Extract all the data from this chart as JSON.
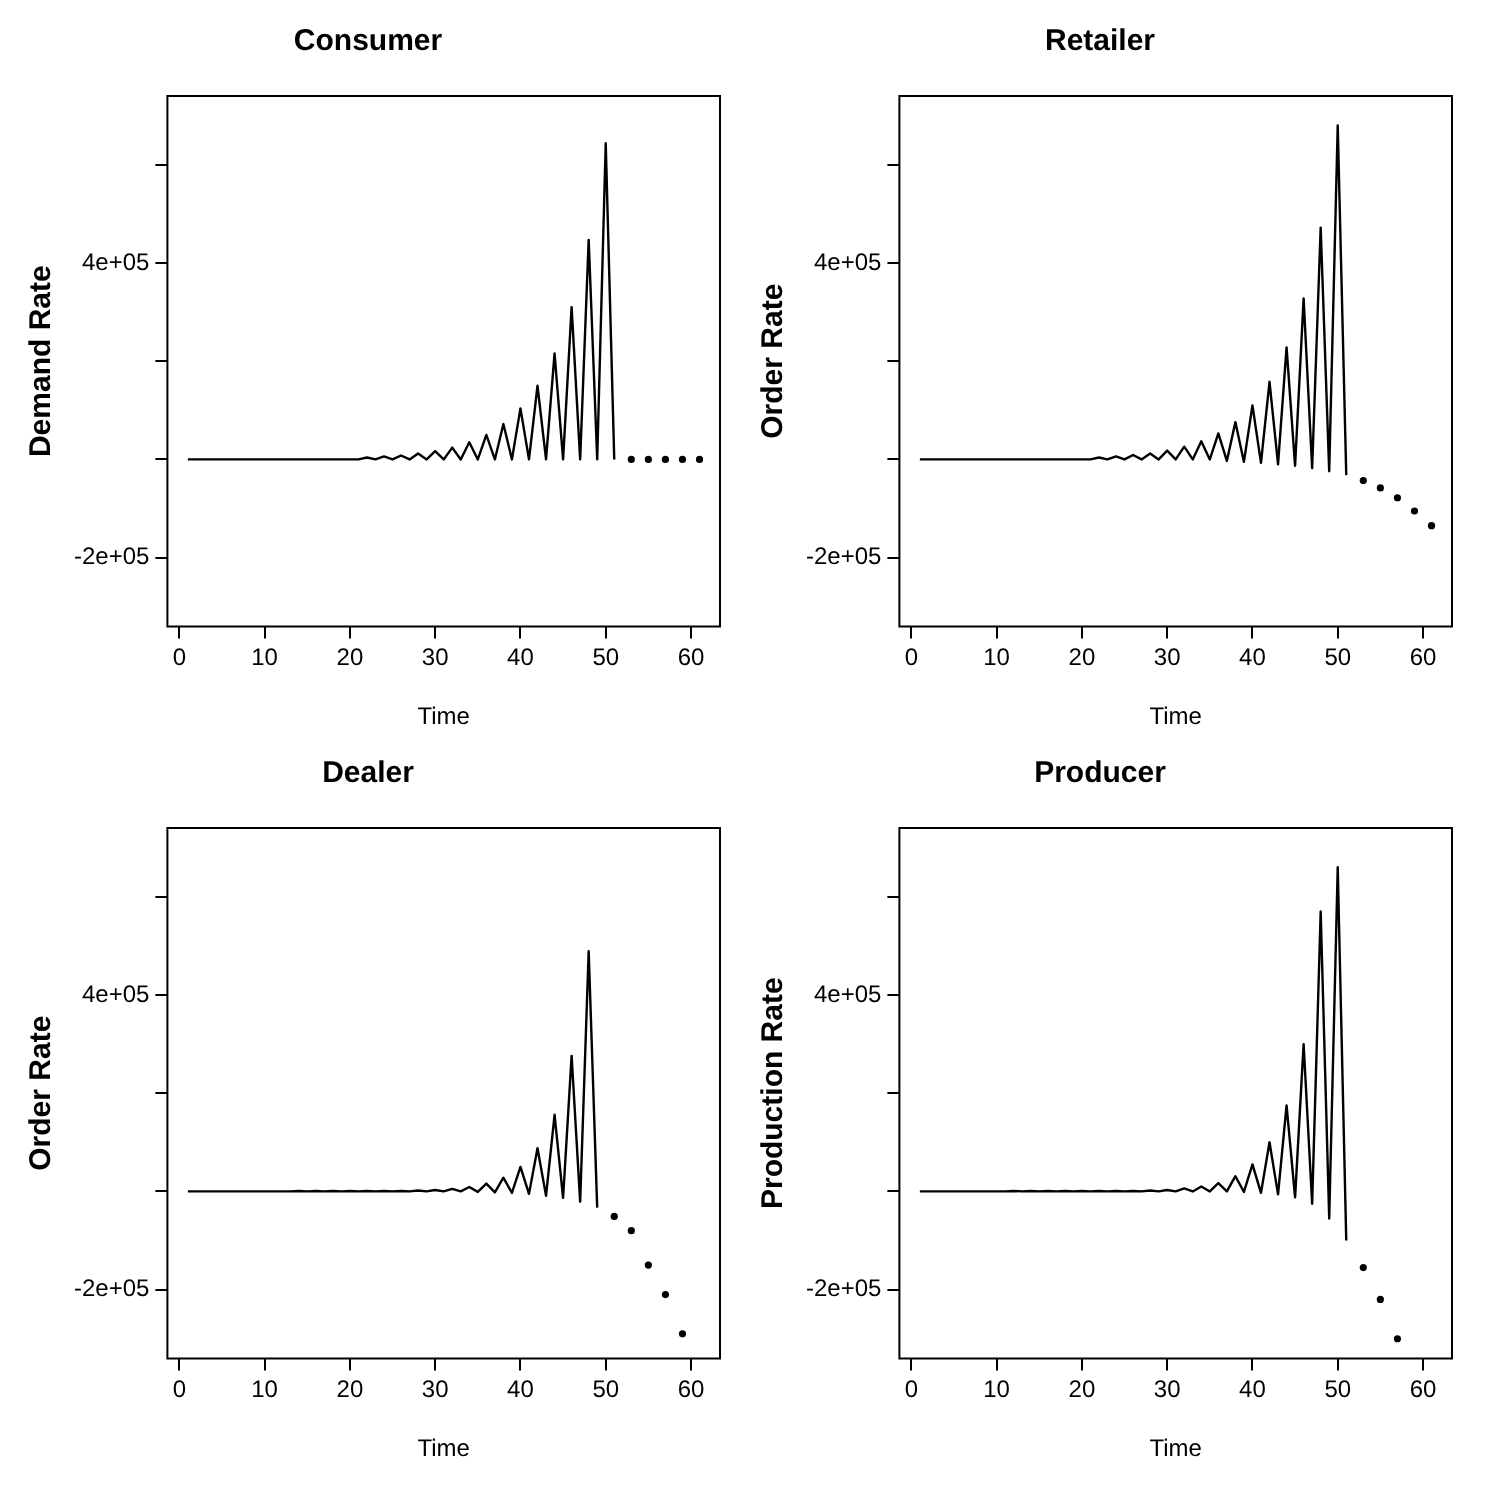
{
  "chart_data": [
    {
      "type": "line",
      "title": "Consumer",
      "xlabel": "Time",
      "ylabel": "Demand Rate",
      "marker": "none",
      "grid": false,
      "xlim": [
        -1.4,
        63.4
      ],
      "xticks": [
        0,
        10,
        20,
        30,
        40,
        50,
        60
      ],
      "ylim": [
        -340000,
        740000
      ],
      "yticks": [
        {
          "value": -200000,
          "label": "-2e+05"
        },
        {
          "value": 0,
          "label": null
        },
        {
          "value": 200000,
          "label": null
        },
        {
          "value": 400000,
          "label": "4e+05"
        },
        {
          "value": 600000,
          "label": null
        }
      ],
      "x": [
        1,
        2,
        3,
        4,
        5,
        6,
        7,
        8,
        9,
        10,
        11,
        12,
        13,
        14,
        15,
        16,
        17,
        18,
        19,
        20,
        21,
        22,
        23,
        24,
        25,
        26,
        27,
        28,
        29,
        30,
        31,
        32,
        33,
        34,
        35,
        36,
        37,
        38,
        39,
        40,
        41,
        42,
        43,
        44,
        45,
        46,
        47,
        48,
        49,
        50,
        51,
        52,
        53,
        54,
        55,
        56,
        57,
        58,
        59,
        60,
        61
      ],
      "series": [
        {
          "color": "#000000",
          "values": [
            0,
            0,
            0,
            0,
            0,
            0,
            0,
            0,
            0,
            0,
            0,
            0,
            0,
            0,
            0,
            0,
            0,
            0,
            0,
            0,
            0,
            4000,
            0,
            6000,
            0,
            8000,
            0,
            12000,
            0,
            17000,
            0,
            24000,
            0,
            35000,
            0,
            50000,
            0,
            72000,
            0,
            104000,
            0,
            150000,
            0,
            216000,
            0,
            310000,
            0,
            447000,
            0,
            644000,
            0,
            null,
            0,
            null,
            0,
            null,
            0,
            null,
            0,
            null,
            0
          ]
        }
      ]
    },
    {
      "type": "line",
      "title": "Retailer",
      "xlabel": "Time",
      "ylabel": "Order Rate",
      "marker": "none",
      "grid": false,
      "xlim": [
        -1.4,
        63.4
      ],
      "xticks": [
        0,
        10,
        20,
        30,
        40,
        50,
        60
      ],
      "ylim": [
        -340000,
        740000
      ],
      "yticks": [
        {
          "value": -200000,
          "label": "-2e+05"
        },
        {
          "value": 0,
          "label": null
        },
        {
          "value": 200000,
          "label": null
        },
        {
          "value": 400000,
          "label": "4e+05"
        },
        {
          "value": 600000,
          "label": null
        }
      ],
      "x": [
        1,
        2,
        3,
        4,
        5,
        6,
        7,
        8,
        9,
        10,
        11,
        12,
        13,
        14,
        15,
        16,
        17,
        18,
        19,
        20,
        21,
        22,
        23,
        24,
        25,
        26,
        27,
        28,
        29,
        30,
        31,
        32,
        33,
        34,
        35,
        36,
        37,
        38,
        39,
        40,
        41,
        42,
        43,
        44,
        45,
        46,
        47,
        48,
        49,
        50,
        51,
        52,
        53,
        54,
        55,
        56,
        57,
        58,
        59,
        60,
        61
      ],
      "series": [
        {
          "color": "#000000",
          "values": [
            0,
            0,
            0,
            0,
            0,
            0,
            0,
            0,
            0,
            0,
            0,
            0,
            0,
            0,
            0,
            0,
            0,
            0,
            0,
            0,
            0,
            4000,
            0,
            6000,
            0,
            9000,
            0,
            12000,
            0,
            18000,
            0,
            26000,
            0,
            37000,
            0,
            53000,
            -3000,
            76000,
            -5000,
            110000,
            -7000,
            158000,
            -10000,
            228000,
            -13000,
            328000,
            -18000,
            472000,
            -24000,
            680000,
            -32000,
            null,
            -43000,
            null,
            -58000,
            null,
            -78000,
            null,
            -105000,
            null,
            -135000
          ]
        }
      ]
    },
    {
      "type": "line",
      "title": "Dealer",
      "xlabel": "Time",
      "ylabel": "Order Rate",
      "marker": "none",
      "grid": false,
      "xlim": [
        -1.4,
        63.4
      ],
      "xticks": [
        0,
        10,
        20,
        30,
        40,
        50,
        60
      ],
      "ylim": [
        -340000,
        740000
      ],
      "yticks": [
        {
          "value": -200000,
          "label": "-2e+05"
        },
        {
          "value": 0,
          "label": null
        },
        {
          "value": 200000,
          "label": null
        },
        {
          "value": 400000,
          "label": "4e+05"
        },
        {
          "value": 600000,
          "label": null
        }
      ],
      "x": [
        1,
        2,
        3,
        4,
        5,
        6,
        7,
        8,
        9,
        10,
        11,
        12,
        13,
        14,
        15,
        16,
        17,
        18,
        19,
        20,
        21,
        22,
        23,
        24,
        25,
        26,
        27,
        28,
        29,
        30,
        31,
        32,
        33,
        34,
        35,
        36,
        37,
        38,
        39,
        40,
        41,
        42,
        43,
        44,
        45,
        46,
        47,
        48,
        49,
        50,
        51,
        52,
        53,
        54,
        55,
        56,
        57,
        58,
        59
      ],
      "series": [
        {
          "color": "#000000",
          "values": [
            0,
            0,
            0,
            0,
            0,
            0,
            0,
            0,
            0,
            0,
            0,
            0,
            0,
            1000,
            0,
            1000,
            0,
            1000,
            0,
            1000,
            0,
            1000,
            0,
            1000,
            0,
            1000,
            0,
            2000,
            0,
            3000,
            0,
            5000,
            0,
            9000,
            -1000,
            16000,
            -2000,
            28000,
            -3000,
            50000,
            -5000,
            88000,
            -9000,
            156000,
            -13000,
            276000,
            -21000,
            489000,
            -33000,
            null,
            -51000,
            null,
            -80000,
            null,
            -150000,
            null,
            -210000,
            null,
            -290000
          ]
        }
      ]
    },
    {
      "type": "line",
      "title": "Producer",
      "xlabel": "Time",
      "ylabel": "Production Rate",
      "marker": "none",
      "grid": false,
      "xlim": [
        -1.4,
        63.4
      ],
      "xticks": [
        0,
        10,
        20,
        30,
        40,
        50,
        60
      ],
      "ylim": [
        -340000,
        740000
      ],
      "yticks": [
        {
          "value": -200000,
          "label": "-2e+05"
        },
        {
          "value": 0,
          "label": null
        },
        {
          "value": 200000,
          "label": null
        },
        {
          "value": 400000,
          "label": "4e+05"
        },
        {
          "value": 600000,
          "label": null
        }
      ],
      "x": [
        1,
        2,
        3,
        4,
        5,
        6,
        7,
        8,
        9,
        10,
        11,
        12,
        13,
        14,
        15,
        16,
        17,
        18,
        19,
        20,
        21,
        22,
        23,
        24,
        25,
        26,
        27,
        28,
        29,
        30,
        31,
        32,
        33,
        34,
        35,
        36,
        37,
        38,
        39,
        40,
        41,
        42,
        43,
        44,
        45,
        46,
        47,
        48,
        49,
        50,
        51,
        52,
        53,
        54,
        55,
        56,
        57
      ],
      "series": [
        {
          "color": "#000000",
          "values": [
            0,
            0,
            0,
            0,
            0,
            0,
            0,
            0,
            0,
            0,
            0,
            1000,
            0,
            1000,
            0,
            1000,
            0,
            1000,
            0,
            1000,
            0,
            1000,
            0,
            1000,
            0,
            1000,
            0,
            2000,
            0,
            3000,
            0,
            6000,
            0,
            10000,
            0,
            17000,
            0,
            31000,
            -1000,
            55000,
            -3000,
            100000,
            -6000,
            175000,
            -12000,
            300000,
            -25000,
            570000,
            -55000,
            660000,
            -100000,
            null,
            -155000,
            null,
            -220000,
            null,
            -300000
          ]
        }
      ]
    }
  ]
}
